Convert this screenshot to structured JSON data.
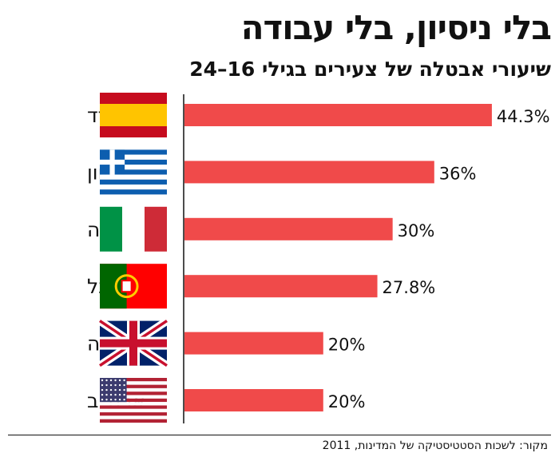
{
  "chart_data": {
    "type": "bar",
    "orientation": "horizontal",
    "title": "בלי ניסיון, בלי עבודה",
    "subtitle": "שיעורי אבטלה של צעירים בגילי 16–24",
    "categories": [
      "ספרד",
      "יוון",
      "איטליה",
      "פורטוגל",
      "בריטניה",
      "ארה\"ב"
    ],
    "flags": [
      "spain-flag",
      "greece-flag",
      "italy-flag",
      "portugal-flag",
      "uk-flag",
      "usa-flag"
    ],
    "values": [
      44.3,
      36,
      30,
      27.8,
      20,
      20
    ],
    "value_labels": [
      "44.3%",
      "36%",
      "30%",
      "27.8%",
      "20%",
      "20%"
    ],
    "xlim": [
      0,
      45
    ],
    "grid": false,
    "bar_color": "#f04a4a",
    "source": "מקור: לשכות הסטטיסטיקה של המדינות, 2011"
  }
}
